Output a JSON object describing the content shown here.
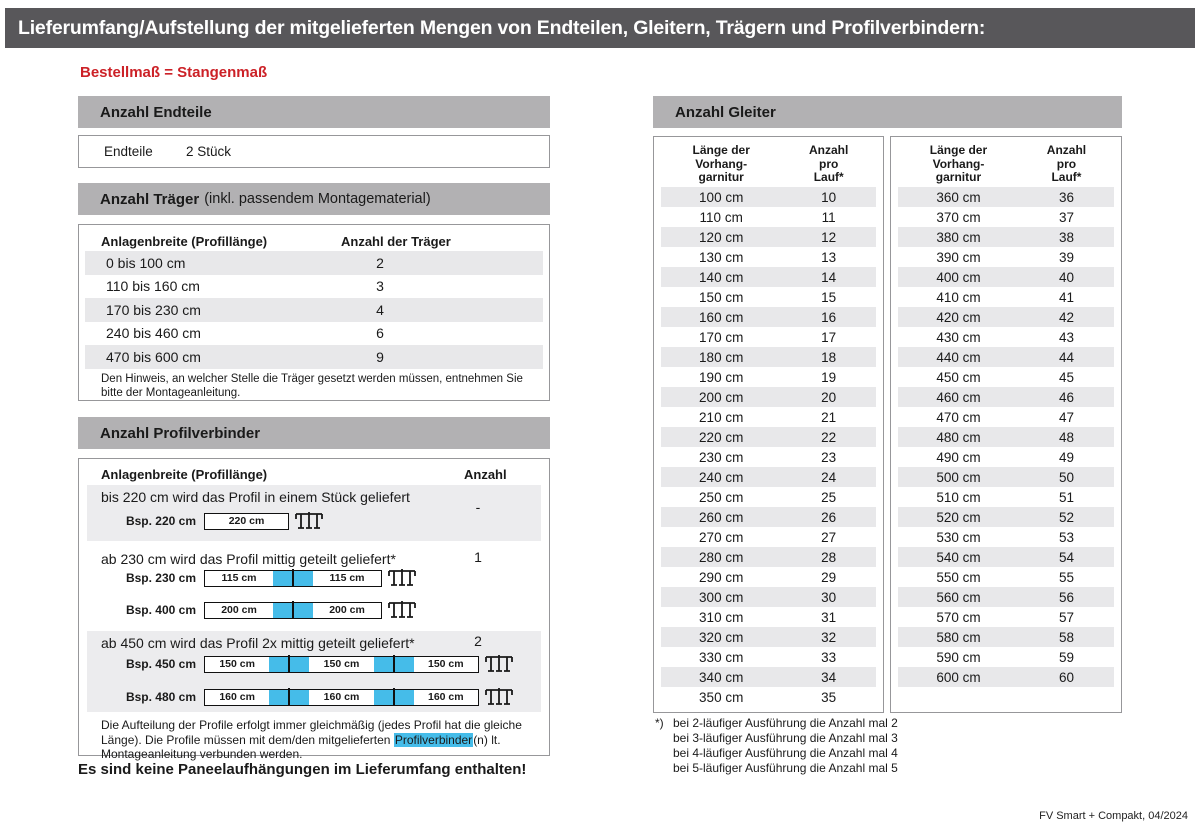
{
  "title_bar": {
    "title": "Lieferumfang/Aufstellung der mitgelieferten Mengen von Endteilen, Gleitern, Trägern und Profilverbindern:"
  },
  "subtitle": "Bestellmaß = Stangenmaß",
  "colors": {
    "dark": "#58575a",
    "section": "#b2b1b3",
    "stripe": "#e8e8ea",
    "blockgray": "#ececee",
    "blue": "#45bce9",
    "border": "#97979a",
    "red": "#cc2127"
  },
  "endteile": {
    "heading": "Anzahl Endteile",
    "label": "Endteile",
    "value": "2 Stück"
  },
  "traeger": {
    "heading": "Anzahl Träger",
    "heading_suffix": "(inkl. passendem Montagematerial)",
    "col1": "Anlagenbreite (Profillänge)",
    "col2": "Anzahl der Träger",
    "rows": [
      [
        "0 bis 100 cm",
        "2"
      ],
      [
        "110 bis 160 cm",
        "3"
      ],
      [
        "170 bis 230 cm",
        "4"
      ],
      [
        "240 bis 460 cm",
        "6"
      ],
      [
        "470 bis 600 cm",
        "9"
      ]
    ],
    "note": "Den Hinweis, an welcher Stelle die Träger gesetzt werden müssen, entnehmen Sie bitte der Montageanleitung."
  },
  "profilverbinder": {
    "heading": "Anzahl Profilverbinder",
    "col1": "Anlagenbreite (Profillänge)",
    "col2": "Anzahl",
    "blocks": [
      {
        "text": "bis 220 cm wird das Profil in einem Stück geliefert",
        "anzahl": "-",
        "examples": [
          {
            "label": "Bsp. 220 cm",
            "segments": [
              "220 cm"
            ]
          }
        ]
      },
      {
        "text": "ab 230 cm wird das Profil mittig geteilt geliefert*",
        "anzahl": "1",
        "examples": [
          {
            "label": "Bsp. 230 cm",
            "segments": [
              "115 cm",
              "115 cm"
            ]
          },
          {
            "label": "Bsp. 400 cm",
            "segments": [
              "200 cm",
              "200 cm"
            ]
          }
        ]
      },
      {
        "text": "ab 450 cm wird das Profil 2x mittig geteilt geliefert*",
        "anzahl": "2",
        "examples": [
          {
            "label": "Bsp. 450 cm",
            "segments": [
              "150 cm",
              "150 cm",
              "150 cm"
            ]
          },
          {
            "label": "Bsp. 480 cm",
            "segments": [
              "160 cm",
              "160 cm",
              "160 cm"
            ]
          }
        ]
      }
    ],
    "note_before": "Die Aufteilung der Profile erfolgt immer gleichmäßig (jedes Profil hat die gleiche Länge). Die Profile müssen mit dem/den mitgelieferten ",
    "note_highlight": "Profilverbinder",
    "note_after": "(n) lt. Montageanleitung verbunden werden."
  },
  "no_panel_note": "Es sind keine Paneelaufhängungen im Lieferumfang enthalten!",
  "gleiter": {
    "heading": "Anzahl Gleiter",
    "col1_lines": [
      "Länge der",
      "Vorhang-",
      "garnitur"
    ],
    "col2_lines": [
      "Anzahl",
      "pro",
      "Lauf*"
    ],
    "table1": [
      [
        "100 cm",
        "10"
      ],
      [
        "110 cm",
        "11"
      ],
      [
        "120 cm",
        "12"
      ],
      [
        "130 cm",
        "13"
      ],
      [
        "140 cm",
        "14"
      ],
      [
        "150 cm",
        "15"
      ],
      [
        "160 cm",
        "16"
      ],
      [
        "170 cm",
        "17"
      ],
      [
        "180 cm",
        "18"
      ],
      [
        "190 cm",
        "19"
      ],
      [
        "200 cm",
        "20"
      ],
      [
        "210 cm",
        "21"
      ],
      [
        "220 cm",
        "22"
      ],
      [
        "230 cm",
        "23"
      ],
      [
        "240 cm",
        "24"
      ],
      [
        "250 cm",
        "25"
      ],
      [
        "260 cm",
        "26"
      ],
      [
        "270 cm",
        "27"
      ],
      [
        "280 cm",
        "28"
      ],
      [
        "290 cm",
        "29"
      ],
      [
        "300 cm",
        "30"
      ],
      [
        "310 cm",
        "31"
      ],
      [
        "320 cm",
        "32"
      ],
      [
        "330 cm",
        "33"
      ],
      [
        "340 cm",
        "34"
      ],
      [
        "350 cm",
        "35"
      ]
    ],
    "table2": [
      [
        "360 cm",
        "36"
      ],
      [
        "370 cm",
        "37"
      ],
      [
        "380 cm",
        "38"
      ],
      [
        "390 cm",
        "39"
      ],
      [
        "400 cm",
        "40"
      ],
      [
        "410 cm",
        "41"
      ],
      [
        "420 cm",
        "42"
      ],
      [
        "430 cm",
        "43"
      ],
      [
        "440 cm",
        "44"
      ],
      [
        "450 cm",
        "45"
      ],
      [
        "460 cm",
        "46"
      ],
      [
        "470 cm",
        "47"
      ],
      [
        "480 cm",
        "48"
      ],
      [
        "490 cm",
        "49"
      ],
      [
        "500 cm",
        "50"
      ],
      [
        "510 cm",
        "51"
      ],
      [
        "520 cm",
        "52"
      ],
      [
        "530 cm",
        "53"
      ],
      [
        "540 cm",
        "54"
      ],
      [
        "550 cm",
        "55"
      ],
      [
        "560 cm",
        "56"
      ],
      [
        "570 cm",
        "57"
      ],
      [
        "580 cm",
        "58"
      ],
      [
        "590 cm",
        "59"
      ],
      [
        "600 cm",
        "60"
      ]
    ],
    "footnote_marker": "*)",
    "footnotes": [
      "bei 2-läufiger Ausführung die Anzahl mal 2",
      "bei 3-läufiger Ausführung die Anzahl mal 3",
      "bei 4-läufiger Ausführung die Anzahl mal 4",
      "bei 5-läufiger Ausführung die Anzahl mal 5"
    ]
  },
  "footer": "FV Smart + Compakt, 04/2024"
}
